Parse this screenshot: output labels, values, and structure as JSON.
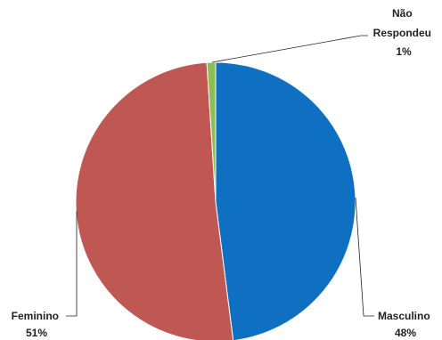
{
  "chart_data": {
    "type": "pie",
    "slices": [
      {
        "label": "Masculino",
        "value": 48,
        "percent_label": "48%",
        "color": "#0f6fc0"
      },
      {
        "label": "Feminino",
        "value": 51,
        "percent_label": "51%",
        "color": "#bf5752"
      },
      {
        "label": "Não Respondeu",
        "value": 1,
        "percent_label": "1%",
        "color": "#8fbd55"
      }
    ],
    "legend": "none",
    "data_labels": "outside with leader lines"
  }
}
